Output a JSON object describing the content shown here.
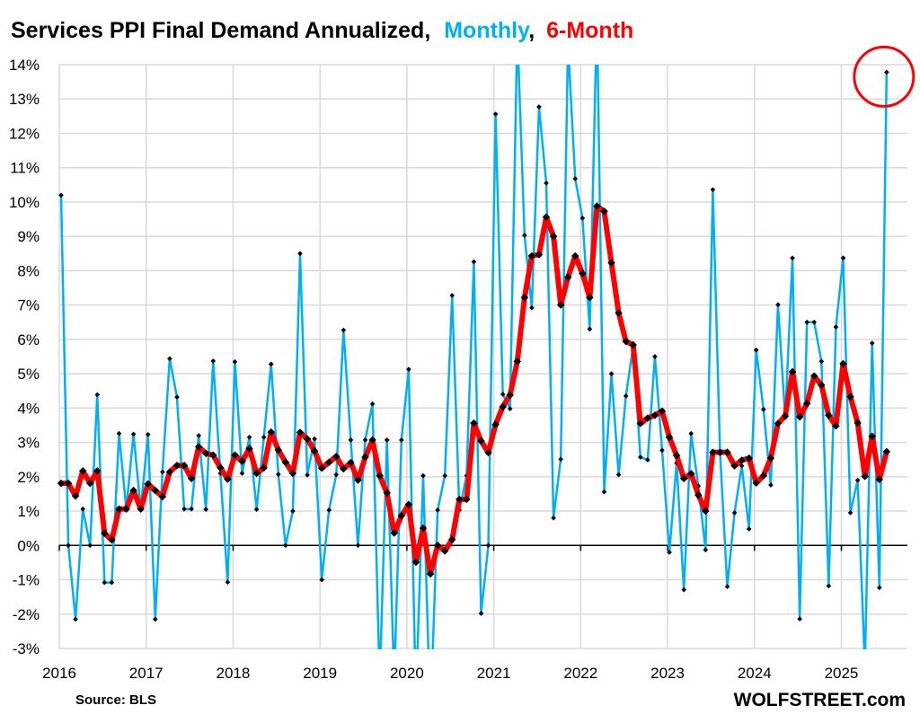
{
  "chart_data": {
    "type": "line",
    "title": "Services PPI Final Demand Annualized,",
    "title_series_labels": [
      "Monthly",
      "6-Month"
    ],
    "source": "Source: BLS",
    "brand": "WOLFSTREET.com",
    "xlabel": "",
    "ylabel": "",
    "x_start": "2016-01",
    "x_end": "2025-07",
    "x_tick_labels": [
      "2016",
      "2017",
      "2018",
      "2019",
      "2020",
      "2021",
      "2022",
      "2023",
      "2024",
      "2025"
    ],
    "y_tick_labels": [
      "14%",
      "13%",
      "12%",
      "11%",
      "10%",
      "9%",
      "8%",
      "7%",
      "6%",
      "5%",
      "4%",
      "3%",
      "2%",
      "1%",
      "0%",
      "-1%",
      "-2%",
      "-3%"
    ],
    "ylim": [
      -3,
      14
    ],
    "grid": true,
    "annotation": "red circle around latest monthly value",
    "colors": {
      "monthly": "#00b0f0",
      "six_month": "#ff0000",
      "markers": "#000000",
      "annotation": "#ff0000"
    },
    "series": [
      {
        "name": "Monthly",
        "values": [
          10.2,
          0,
          -2.15,
          1.06,
          0,
          4.39,
          -1.08,
          -1.08,
          3.26,
          1.06,
          3.24,
          1.06,
          3.23,
          -2.15,
          2.14,
          5.44,
          4.32,
          1.06,
          1.06,
          3.2,
          1.05,
          5.37,
          2.1,
          -1.07,
          5.35,
          2.1,
          3.15,
          1.05,
          3.15,
          5.28,
          2.07,
          0,
          1.0,
          8.5,
          2.05,
          3.1,
          -1.0,
          1.03,
          2.06,
          6.27,
          3.07,
          0,
          3.07,
          4.12,
          -4.0,
          3.07,
          -4.0,
          3.07,
          5.13,
          -4.5,
          2.03,
          -5.0,
          1.03,
          2.03,
          7.28,
          1.03,
          2.03,
          8.26,
          -1.98,
          0,
          12.56,
          4.4,
          3.98,
          15.0,
          9.03,
          6.92,
          12.77,
          10.55,
          0.8,
          2.51,
          14.6,
          10.68,
          9.53,
          6.3,
          15.5,
          1.56,
          5.0,
          2.06,
          4.35,
          5.8,
          2.57,
          2.49,
          5.5,
          2.77,
          -0.2,
          2.4,
          -1.29,
          3.26,
          1.73,
          -0.13,
          10.36,
          2.71,
          -1.2,
          0.95,
          2.32,
          0.48,
          5.69,
          3.96,
          1.76,
          7.01,
          3.72,
          8.37,
          -2.14,
          6.5,
          6.5,
          5.36,
          -1.18,
          6.36,
          8.37,
          0.95,
          1.9,
          -3.5,
          5.89,
          -1.23,
          13.78
        ]
      },
      {
        "name": "6-Month",
        "values": [
          1.81,
          1.81,
          1.44,
          2.17,
          1.81,
          2.17,
          0.35,
          0.16,
          1.06,
          1.06,
          1.6,
          1.06,
          1.79,
          1.6,
          1.42,
          2.14,
          2.33,
          2.33,
          1.95,
          2.87,
          2.68,
          2.63,
          2.26,
          1.93,
          2.63,
          2.45,
          2.82,
          2.1,
          2.26,
          3.3,
          2.78,
          2.42,
          2.1,
          3.29,
          3.1,
          2.75,
          2.25,
          2.42,
          2.59,
          2.23,
          2.41,
          1.9,
          2.57,
          3.07,
          2.03,
          1.53,
          0.36,
          0.86,
          1.19,
          -0.49,
          0.5,
          -0.83,
          0,
          -0.16,
          0.17,
          1.34,
          1.34,
          3.56,
          3.04,
          2.7,
          3.52,
          4.04,
          4.38,
          5.36,
          7.22,
          8.43,
          8.47,
          9.56,
          9.0,
          7.0,
          7.81,
          8.43,
          7.92,
          7.22,
          9.88,
          9.73,
          8.23,
          6.77,
          5.94,
          5.84,
          3.55,
          3.71,
          3.79,
          3.91,
          3.15,
          2.62,
          1.95,
          2.09,
          1.47,
          1.0,
          2.71,
          2.71,
          2.71,
          2.32,
          2.48,
          2.54,
          1.82,
          2.03,
          2.54,
          3.55,
          3.77,
          5.06,
          3.74,
          4.13,
          4.93,
          4.67,
          3.79,
          3.48,
          5.29,
          4.33,
          3.57,
          2.01,
          3.18,
          1.92,
          2.73
        ]
      }
    ]
  }
}
